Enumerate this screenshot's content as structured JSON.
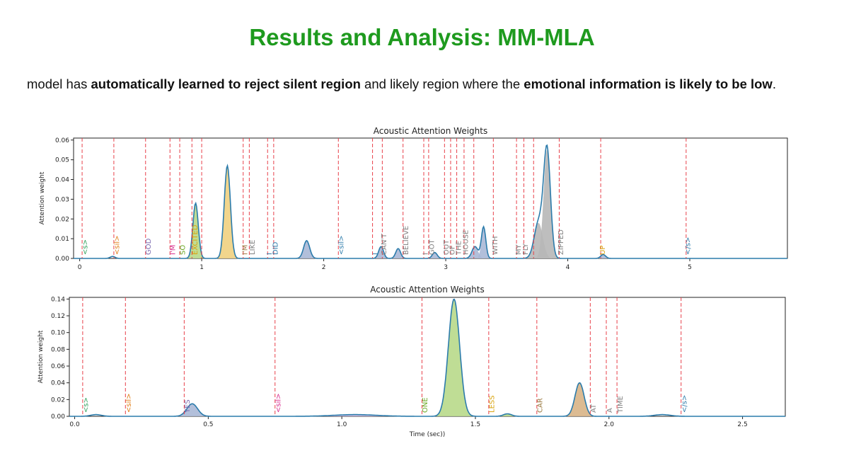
{
  "slide": {
    "title": "Results and Analysis: MM-MLA",
    "title_color": "#1e9a1e",
    "text_segments": [
      {
        "text": "model has ",
        "bold": false
      },
      {
        "text": "automatically learned to  reject silent region",
        "bold": true
      },
      {
        "text": " and likely region where the ",
        "bold": false
      },
      {
        "text": "emotional information is likely to be low",
        "bold": true
      },
      {
        "text": ".",
        "bold": false
      }
    ]
  },
  "chart_data": [
    {
      "type": "area",
      "title": "Acoustic Attention Weights",
      "ylabel": "Attention weight",
      "xlabel": "",
      "xlim": [
        -0.05,
        5.8
      ],
      "ylim": [
        0,
        0.061
      ],
      "xticks": [
        0,
        1,
        2,
        3,
        4,
        5
      ],
      "yticks": [
        0.0,
        0.01,
        0.02,
        0.03,
        0.04,
        0.05,
        0.06
      ],
      "ytick_labels": [
        "0.00",
        "0.01",
        "0.02",
        "0.03",
        "0.04",
        "0.05",
        "0.06"
      ],
      "line_color": "#2b7bab",
      "boundary_color": "#e8404a",
      "boundaries": [
        0.02,
        0.28,
        0.54,
        0.74,
        0.82,
        0.92,
        1.0,
        1.34,
        1.39,
        1.54,
        1.59,
        2.12,
        2.4,
        2.48,
        2.65,
        2.82,
        2.86,
        2.99,
        3.04,
        3.09,
        3.15,
        3.23,
        3.39,
        3.58,
        3.64,
        3.72,
        3.93,
        4.27,
        4.97
      ],
      "words": [
        {
          "label": "<s>",
          "x": 0.04,
          "color": "#2ca05a"
        },
        {
          "label": "<sil>",
          "x": 0.3,
          "color": "#e07a10"
        },
        {
          "label": "GOD",
          "x": 0.56,
          "color": "#7a6ab0"
        },
        {
          "label": "I'M",
          "x": 0.76,
          "color": "#d6278c"
        },
        {
          "label": "SO",
          "x": 0.84,
          "color": "#68a822"
        },
        {
          "label": "EXCITED",
          "x": 0.94,
          "color": "#d9a40f"
        },
        {
          "label": "I'M",
          "x": 1.35,
          "color": "#9a7a40"
        },
        {
          "label": "LIKE",
          "x": 1.41,
          "color": "#808080"
        },
        {
          "label": "I",
          "x": 1.55,
          "color": "#2b7bab"
        },
        {
          "label": "DID",
          "x": 1.6,
          "color": "#2b7bab"
        },
        {
          "label": "<sil>",
          "x": 2.14,
          "color": "#2b7bab"
        },
        {
          "label": "I",
          "x": 2.42,
          "color": "#2b7bab"
        },
        {
          "label": "CAN'T",
          "x": 2.49,
          "color": "#808080"
        },
        {
          "label": "BELIEVE",
          "x": 2.67,
          "color": "#808080"
        },
        {
          "label": "I",
          "x": 2.83,
          "color": "#808080"
        },
        {
          "label": "GOT",
          "x": 2.88,
          "color": "#808080"
        },
        {
          "label": "OUT",
          "x": 3.0,
          "color": "#808080"
        },
        {
          "label": "OF",
          "x": 3.05,
          "color": "#808080"
        },
        {
          "label": "THE",
          "x": 3.1,
          "color": "#808080"
        },
        {
          "label": "HOUSE",
          "x": 3.16,
          "color": "#808080"
        },
        {
          "label": "WITH",
          "x": 3.4,
          "color": "#808080"
        },
        {
          "label": "MY",
          "x": 3.59,
          "color": "#808080"
        },
        {
          "label": "FLY",
          "x": 3.65,
          "color": "#808080"
        },
        {
          "label": "ZIPPED",
          "x": 3.94,
          "color": "#808080"
        },
        {
          "label": "UP",
          "x": 4.28,
          "color": "#d9a40f"
        },
        {
          "label": "</s>",
          "x": 4.98,
          "color": "#2b7bab"
        }
      ],
      "peaks": [
        {
          "x": 0.27,
          "y": 0.001,
          "w": 0.02
        },
        {
          "x": 0.95,
          "y": 0.028,
          "w": 0.022,
          "fill": "#b8d98a"
        },
        {
          "x": 1.21,
          "y": 0.047,
          "w": 0.025,
          "fill": "#f0d080"
        },
        {
          "x": 1.86,
          "y": 0.009,
          "w": 0.025,
          "fill": "#aab8d6"
        },
        {
          "x": 2.47,
          "y": 0.006,
          "w": 0.02,
          "fill": "#aab8d6"
        },
        {
          "x": 2.61,
          "y": 0.005,
          "w": 0.02,
          "fill": "#aab8d6"
        },
        {
          "x": 2.91,
          "y": 0.003,
          "w": 0.02,
          "fill": "#aab8d6"
        },
        {
          "x": 3.24,
          "y": 0.006,
          "w": 0.025,
          "fill": "#aab8d6"
        },
        {
          "x": 3.31,
          "y": 0.016,
          "w": 0.018,
          "fill": "#aab8d6"
        },
        {
          "x": 3.76,
          "y": 0.018,
          "w": 0.035,
          "fill": "#b7b7b7"
        },
        {
          "x": 3.83,
          "y": 0.055,
          "w": 0.028,
          "fill": "#b7b7b7"
        },
        {
          "x": 4.29,
          "y": 0.002,
          "w": 0.02,
          "fill": "#aab8d6"
        }
      ]
    },
    {
      "type": "area",
      "title": "Acoustic Attention Weights",
      "ylabel": "Attention weight",
      "xlabel": "Time (sec))",
      "xlim": [
        -0.02,
        2.66
      ],
      "ylim": [
        0,
        0.142
      ],
      "xticks": [
        0.0,
        0.5,
        1.0,
        1.5,
        2.0,
        2.5
      ],
      "xtick_labels": [
        "0.0",
        "0.5",
        "1.0",
        "1.5",
        "2.0",
        "2.5"
      ],
      "yticks": [
        0.0,
        0.02,
        0.04,
        0.06,
        0.08,
        0.1,
        0.12,
        0.14
      ],
      "ytick_labels": [
        "0.00",
        "0.02",
        "0.04",
        "0.06",
        "0.08",
        "0.10",
        "0.12",
        "0.14"
      ],
      "line_color": "#2b7bab",
      "boundary_color": "#e8404a",
      "boundaries": [
        0.03,
        0.19,
        0.41,
        0.75,
        1.3,
        1.55,
        1.73,
        1.93,
        1.99,
        2.03,
        2.27
      ],
      "words": [
        {
          "label": "<s>",
          "x": 0.04,
          "color": "#2ca05a"
        },
        {
          "label": "<sil>",
          "x": 0.2,
          "color": "#e07a10"
        },
        {
          "label": "YES",
          "x": 0.42,
          "color": "#7a6ab0"
        },
        {
          "label": "<sil>",
          "x": 0.76,
          "color": "#d6278c"
        },
        {
          "label": "ONE",
          "x": 1.31,
          "color": "#68a822"
        },
        {
          "label": "LESS",
          "x": 1.56,
          "color": "#d9a40f"
        },
        {
          "label": "CAR",
          "x": 1.74,
          "color": "#9a7a40"
        },
        {
          "label": "AT",
          "x": 1.94,
          "color": "#808080"
        },
        {
          "label": "A",
          "x": 2.0,
          "color": "#808080"
        },
        {
          "label": "TIME",
          "x": 2.04,
          "color": "#808080"
        },
        {
          "label": "</s>",
          "x": 2.28,
          "color": "#2b7bab"
        }
      ],
      "peaks": [
        {
          "x": 0.08,
          "y": 0.002,
          "w": 0.02
        },
        {
          "x": 0.44,
          "y": 0.015,
          "w": 0.02,
          "fill": "#aab8d6"
        },
        {
          "x": 1.05,
          "y": 0.002,
          "w": 0.08,
          "fill": "#cdb8e0"
        },
        {
          "x": 1.42,
          "y": 0.14,
          "w": 0.021,
          "fill": "#b8d98a"
        },
        {
          "x": 1.62,
          "y": 0.003,
          "w": 0.015,
          "fill": "#b8d98a"
        },
        {
          "x": 1.89,
          "y": 0.04,
          "w": 0.017,
          "fill": "#d8b486"
        },
        {
          "x": 2.2,
          "y": 0.002,
          "w": 0.03
        }
      ]
    }
  ]
}
